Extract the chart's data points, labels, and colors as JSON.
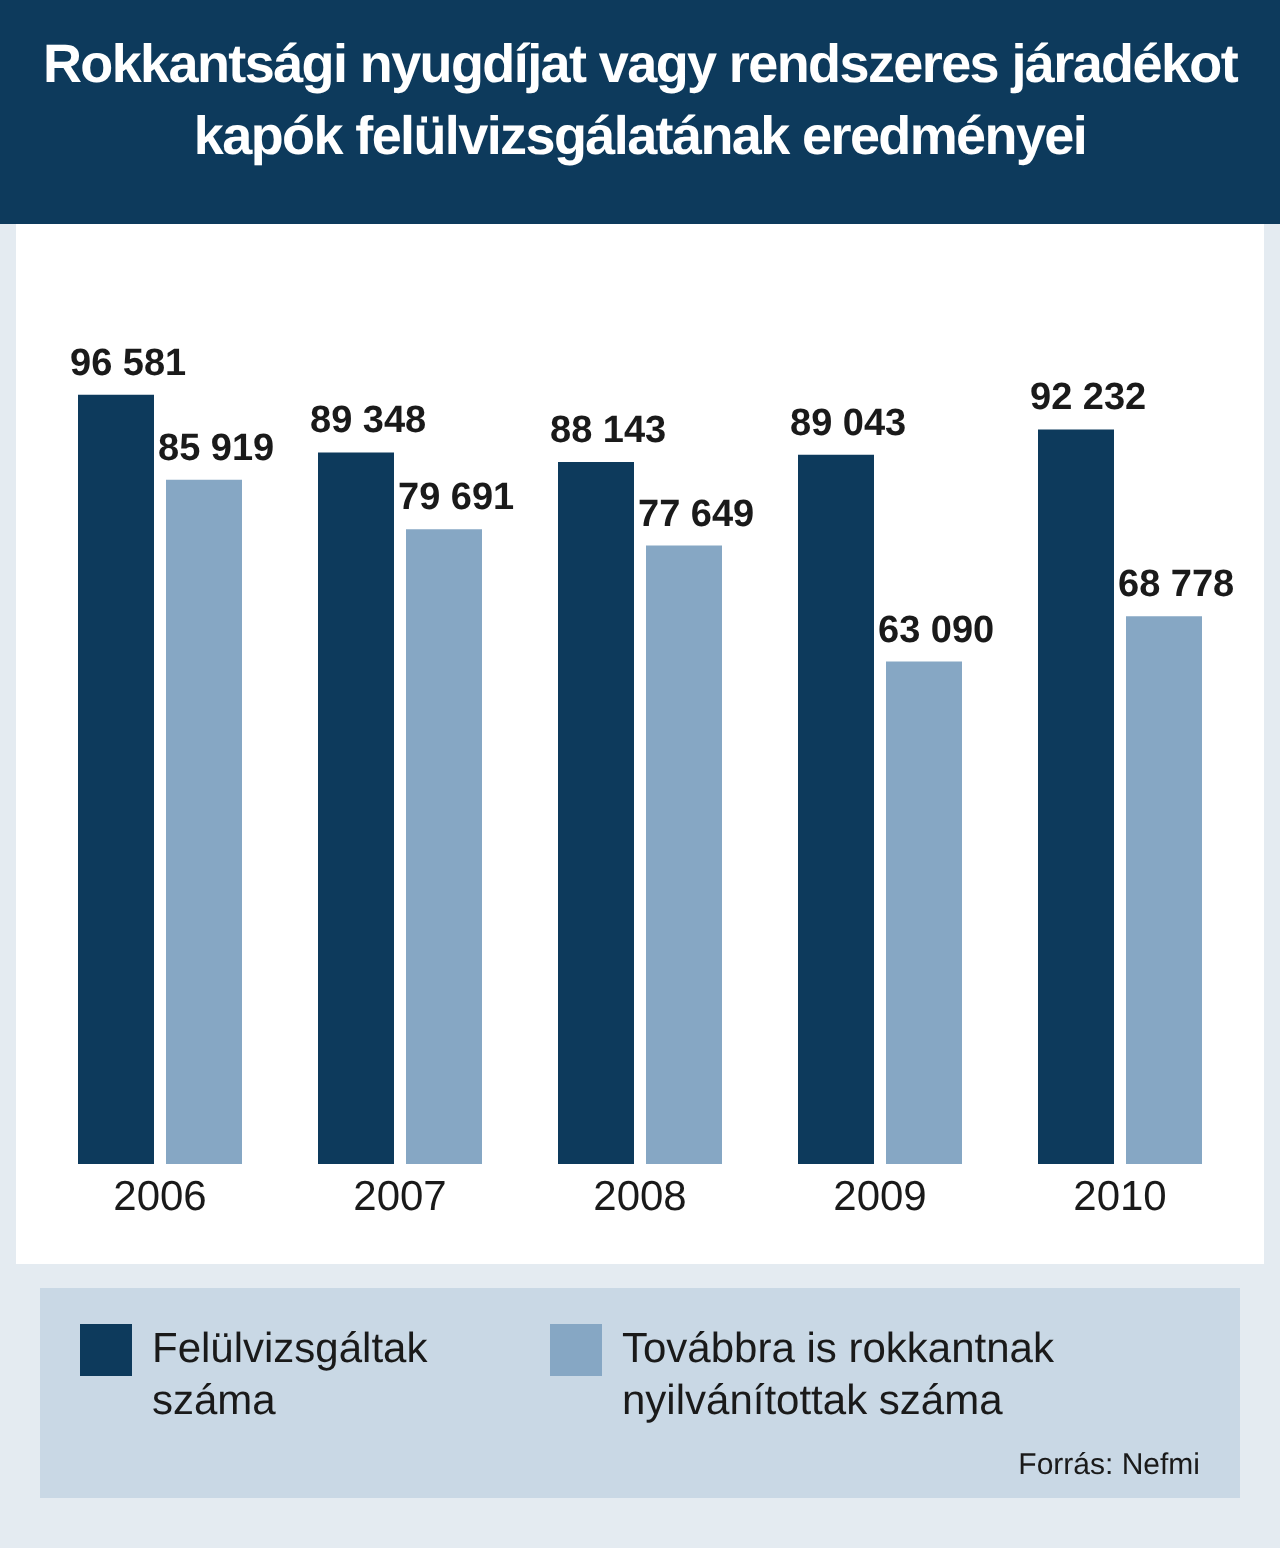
{
  "chart_data": {
    "type": "bar",
    "title": "Rokkantsági nyugdíjat vagy rendszeres járadékot kapók felülvizsgálatának eredményei",
    "categories": [
      "2006",
      "2007",
      "2008",
      "2009",
      "2010"
    ],
    "series": [
      {
        "name": "Felülvizsgáltak száma",
        "color": "#0d3a5c",
        "values": [
          96581,
          89348,
          88143,
          89043,
          92232
        ],
        "value_labels": [
          "96 581",
          "89 348",
          "88 143",
          "89 043",
          "92 232"
        ]
      },
      {
        "name": "Továbbra is rokkantnak nyilvánítottak száma",
        "color": "#86a7c4",
        "values": [
          85919,
          79691,
          77649,
          63090,
          68778
        ],
        "value_labels": [
          "85 919",
          "79 691",
          "77 649",
          "63 090",
          "68 778"
        ]
      }
    ],
    "legend": "bottom",
    "grid": false,
    "annotations": [
      "Forrás: Nefmi"
    ]
  }
}
